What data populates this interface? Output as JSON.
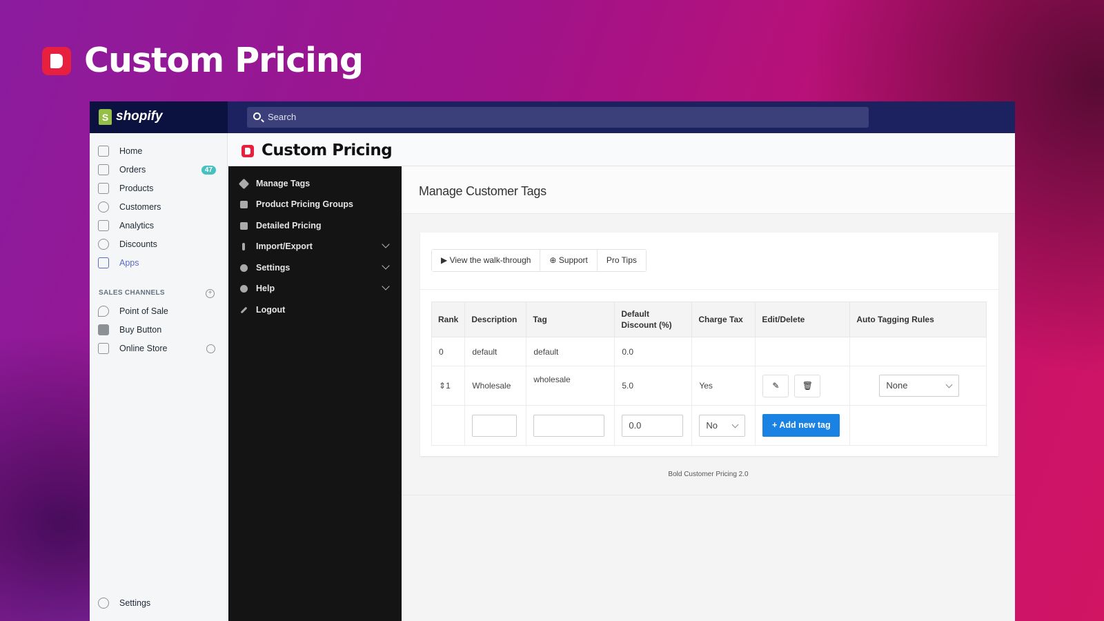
{
  "hero": {
    "title": "Custom Pricing"
  },
  "topbar": {
    "brand": "shopify",
    "search_placeholder": "Search"
  },
  "sidebar": {
    "items": [
      {
        "label": "Home"
      },
      {
        "label": "Orders",
        "badge": "47"
      },
      {
        "label": "Products"
      },
      {
        "label": "Customers"
      },
      {
        "label": "Analytics"
      },
      {
        "label": "Discounts"
      },
      {
        "label": "Apps",
        "active": true
      }
    ],
    "section_label": "SALES CHANNELS",
    "channels": [
      {
        "label": "Point of Sale"
      },
      {
        "label": "Buy Button"
      },
      {
        "label": "Online Store"
      }
    ],
    "settings": "Settings"
  },
  "app": {
    "title": "Custom Pricing",
    "accent": "#e8203f"
  },
  "menu": [
    {
      "label": "Manage Tags",
      "icon": "tag-icon"
    },
    {
      "label": "Product Pricing Groups",
      "icon": "sitemap-icon"
    },
    {
      "label": "Detailed Pricing",
      "icon": "sliders-icon"
    },
    {
      "label": "Import/Export",
      "icon": "arrows-icon"
    },
    {
      "label": "Settings",
      "icon": "gear-icon"
    },
    {
      "label": "Help",
      "icon": "question-icon"
    },
    {
      "label": "Logout",
      "icon": "key-icon"
    }
  ],
  "content": {
    "heading": "Manage Customer Tags",
    "buttons": {
      "walkthrough": "View the walk-through",
      "support": "Support",
      "protips": "Pro Tips"
    },
    "table": {
      "headers": [
        "Rank",
        "Description",
        "Tag",
        "Default Discount (%)",
        "Charge Tax",
        "Edit/Delete",
        "Auto Tagging Rules"
      ],
      "rows": [
        {
          "rank": "0",
          "description": "default",
          "tag": "default",
          "discount": "0.0",
          "tax": ""
        },
        {
          "rank": "1",
          "description": "Wholesale",
          "tag": "wholesale",
          "discount": "5.0",
          "tax": "Yes",
          "auto_tagging": "None"
        }
      ],
      "new_row": {
        "discount": "0.0",
        "tax": "No",
        "add_label": "Add new tag"
      }
    },
    "footer": "Bold Customer Pricing 2.0"
  },
  "colors": {
    "primary_button": "#1a82e2",
    "badge": "#47c1bf",
    "topbar": "#1c2260"
  }
}
